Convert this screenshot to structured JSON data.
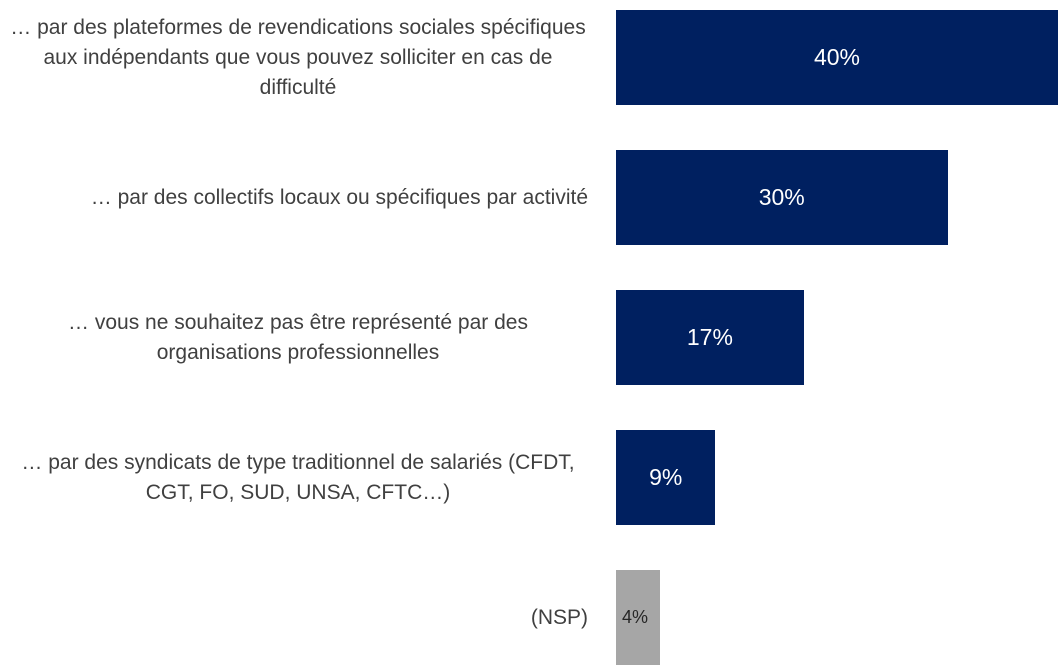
{
  "chart_data": {
    "type": "bar",
    "orientation": "horizontal",
    "categories": [
      "… par des plateformes de revendications sociales spécifiques aux indépendants que vous pouvez solliciter en cas de difficulté",
      "… par des collectifs locaux ou spécifiques par activité",
      "… vous ne souhaitez pas être représenté par des organisations professionnelles",
      "… par des syndicats de type traditionnel de salariés (CFDT, CGT, FO, SUD, UNSA, CFTC…)",
      "(NSP)"
    ],
    "values": [
      40,
      30,
      17,
      9,
      4
    ],
    "value_labels": [
      "40%",
      "30%",
      "17%",
      "9%",
      "4%"
    ],
    "colors": [
      "#002060",
      "#002060",
      "#002060",
      "#002060",
      "#a6a6a6"
    ],
    "label_colors": [
      "#ffffff",
      "#ffffff",
      "#ffffff",
      "#ffffff",
      "#262626"
    ],
    "xlim": [
      0,
      40
    ]
  }
}
